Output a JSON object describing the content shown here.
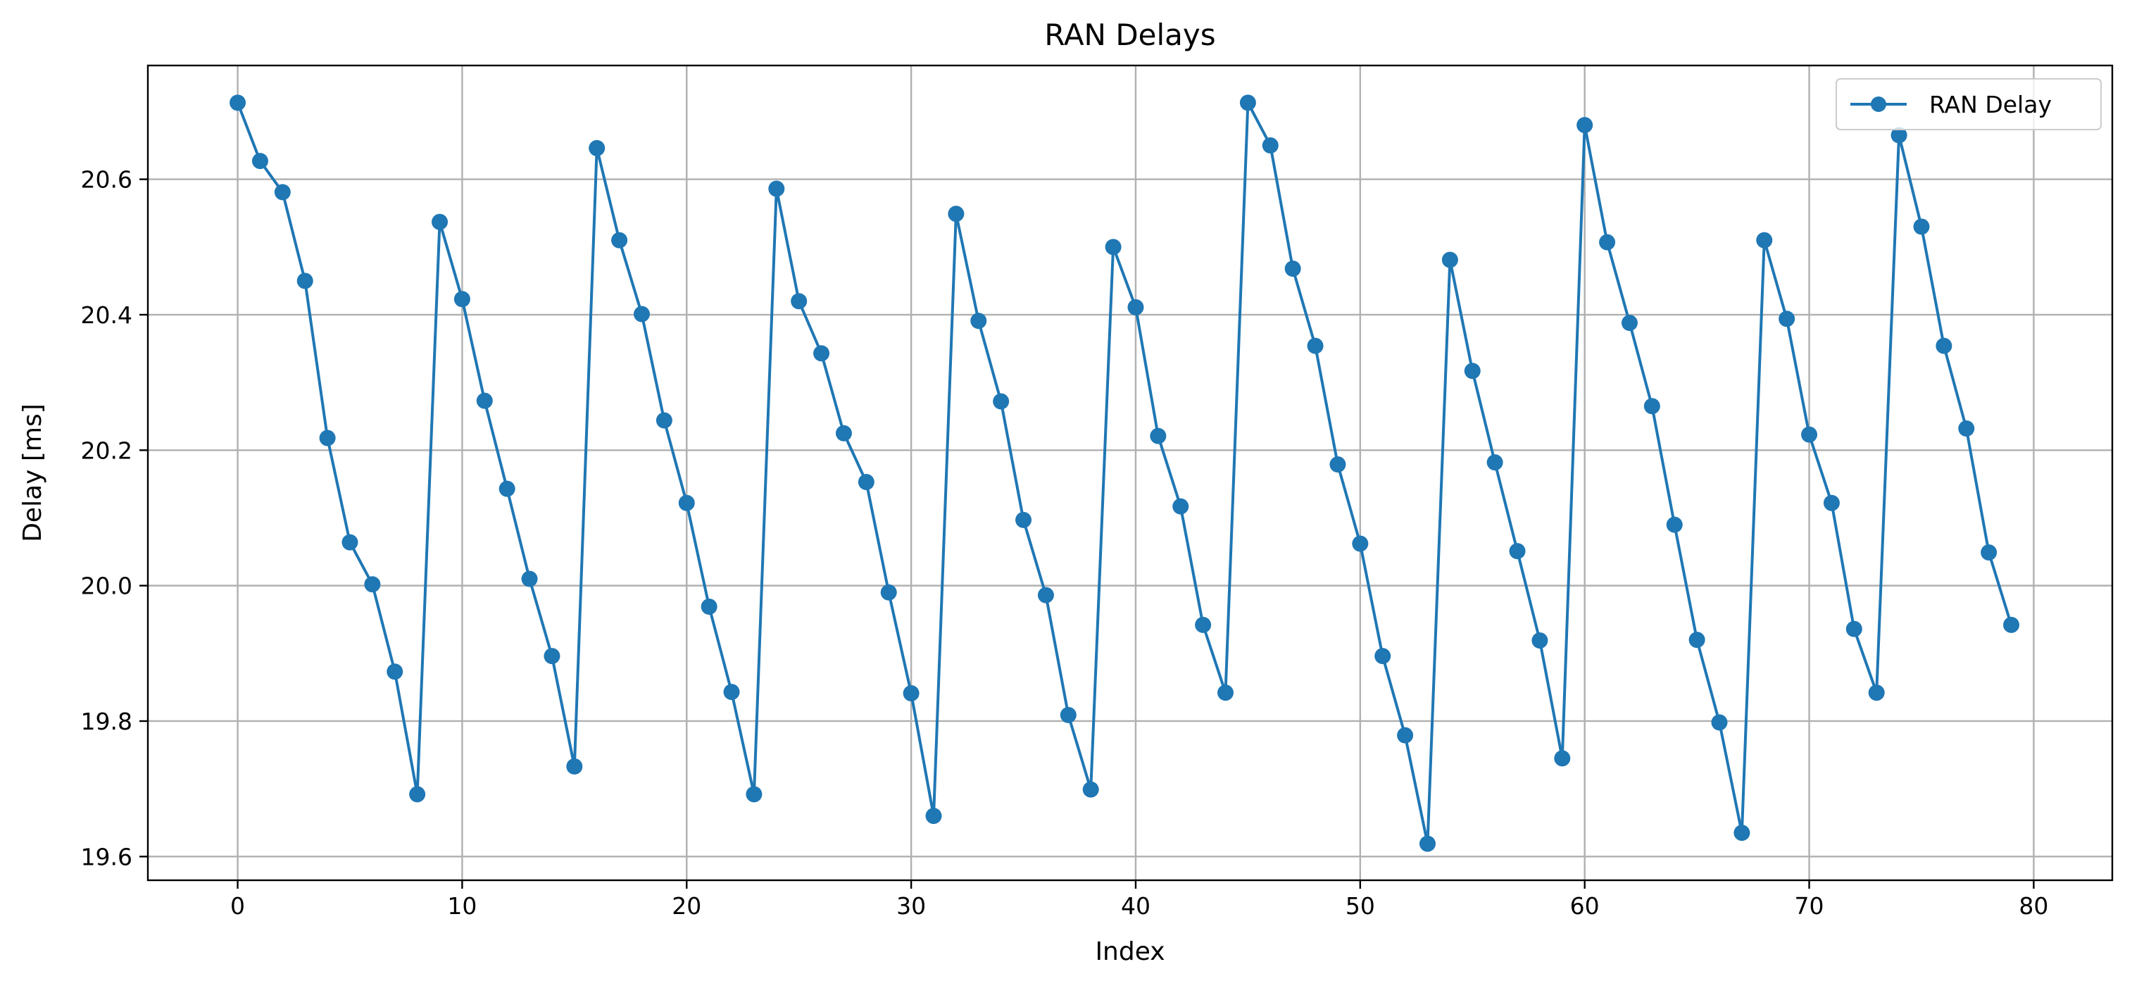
{
  "chart_data": {
    "type": "line",
    "title": "RAN Delays",
    "xlabel": "Index",
    "ylabel": "Delay [ms]",
    "xlim": [
      -4,
      83.5
    ],
    "ylim": [
      19.565,
      20.768
    ],
    "xticks": [
      0,
      10,
      20,
      30,
      40,
      50,
      60,
      70,
      80
    ],
    "xtick_labels": [
      "0",
      "10",
      "20",
      "30",
      "40",
      "50",
      "60",
      "70",
      "80"
    ],
    "yticks": [
      19.6,
      19.8,
      20.0,
      20.2,
      20.4,
      20.6
    ],
    "ytick_labels": [
      "19.6",
      "19.8",
      "20.0",
      "20.2",
      "20.4",
      "20.6"
    ],
    "grid": true,
    "legend_position": "top-right",
    "series": [
      {
        "name": "RAN Delay",
        "color": "#1f77b4",
        "marker": "circle",
        "x": [
          0,
          1,
          2,
          3,
          4,
          5,
          6,
          7,
          8,
          9,
          10,
          11,
          12,
          13,
          14,
          15,
          16,
          17,
          18,
          19,
          20,
          21,
          22,
          23,
          24,
          25,
          26,
          27,
          28,
          29,
          30,
          31,
          32,
          33,
          34,
          35,
          36,
          37,
          38,
          39,
          40,
          41,
          42,
          43,
          44,
          45,
          46,
          47,
          48,
          49,
          50,
          51,
          52,
          53,
          54,
          55,
          56,
          57,
          58,
          59,
          60,
          61,
          62,
          63,
          64,
          65,
          66,
          67,
          68,
          69,
          70,
          71,
          72,
          73,
          74,
          75,
          76,
          77,
          78,
          79
        ],
        "values": [
          20.713,
          20.627,
          20.581,
          20.45,
          20.218,
          20.064,
          20.002,
          19.873,
          19.692,
          20.537,
          20.423,
          20.273,
          20.143,
          20.01,
          19.896,
          19.733,
          20.646,
          20.51,
          20.401,
          20.244,
          20.122,
          19.969,
          19.843,
          19.692,
          20.586,
          20.42,
          20.343,
          20.225,
          20.153,
          19.99,
          19.841,
          19.66,
          20.549,
          20.391,
          20.272,
          20.097,
          19.986,
          19.809,
          19.699,
          20.5,
          20.411,
          20.221,
          20.117,
          19.942,
          19.842,
          20.713,
          20.65,
          20.468,
          20.354,
          20.179,
          20.062,
          19.896,
          19.779,
          19.619,
          20.481,
          20.317,
          20.182,
          20.051,
          19.919,
          19.745,
          20.68,
          20.507,
          20.388,
          20.265,
          20.09,
          19.92,
          19.798,
          19.635,
          20.51,
          20.394,
          20.223,
          20.122,
          19.936,
          19.842,
          20.665,
          20.53,
          20.354,
          20.232,
          20.049,
          19.942
        ]
      }
    ]
  }
}
